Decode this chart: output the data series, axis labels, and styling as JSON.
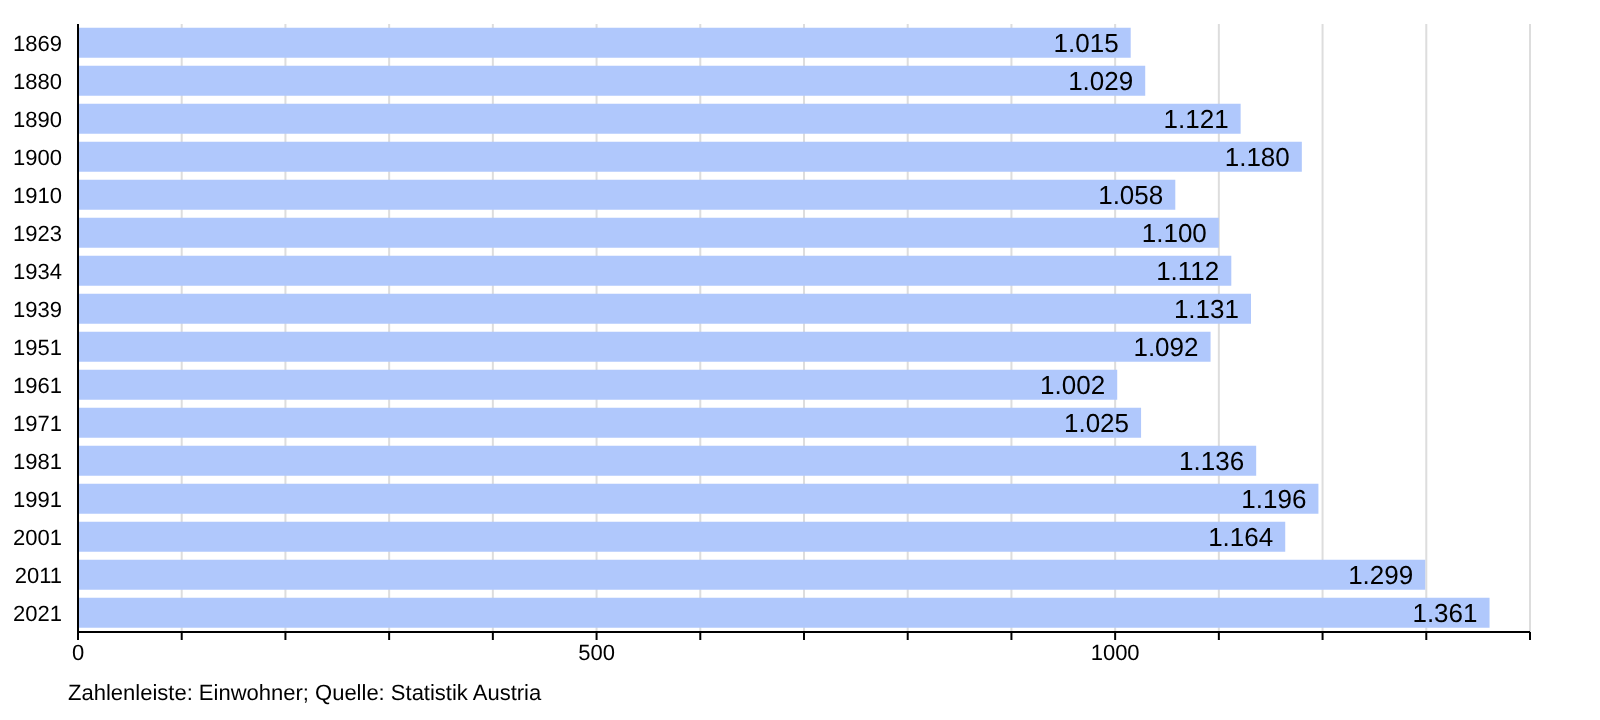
{
  "chart_data": {
    "type": "bar",
    "orientation": "horizontal",
    "categories": [
      "1869",
      "1880",
      "1890",
      "1900",
      "1910",
      "1923",
      "1934",
      "1939",
      "1951",
      "1961",
      "1971",
      "1981",
      "1991",
      "2001",
      "2011",
      "2021"
    ],
    "values": [
      1015,
      1029,
      1121,
      1180,
      1058,
      1100,
      1112,
      1131,
      1092,
      1002,
      1025,
      1136,
      1196,
      1164,
      1299,
      1361
    ],
    "value_labels": [
      "1.015",
      "1.029",
      "1.121",
      "1.180",
      "1.058",
      "1.100",
      "1.112",
      "1.131",
      "1.092",
      "1.002",
      "1.025",
      "1.136",
      "1.196",
      "1.164",
      "1.299",
      "1.361"
    ],
    "color": "#b0c8fc",
    "xlim": [
      0,
      1400
    ],
    "xticks": [
      0,
      {
        "value": 100,
        "label": null
      },
      {
        "value": 200,
        "label": null
      },
      {
        "value": 300,
        "label": null
      },
      {
        "value": 400,
        "label": null
      },
      500,
      {
        "value": 600,
        "label": null
      },
      {
        "value": 700,
        "label": null
      },
      {
        "value": 800,
        "label": null
      },
      {
        "value": 900,
        "label": null
      },
      1000,
      {
        "value": 1100,
        "label": null
      },
      {
        "value": 1200,
        "label": null
      },
      {
        "value": 1300,
        "label": null
      },
      {
        "value": 1400,
        "label": null
      }
    ],
    "grid": "x",
    "annotations": [
      "Zahlenleiste: Einwohner; Quelle: Statistik Austria"
    ]
  }
}
